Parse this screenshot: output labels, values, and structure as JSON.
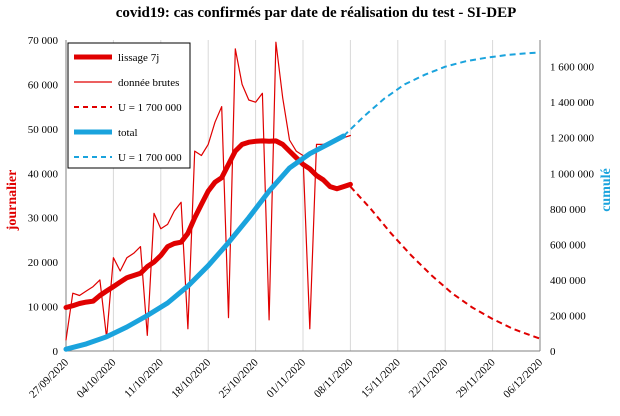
{
  "chart_data": {
    "type": "line",
    "title": "covid19: cas confirmés par date de réalisation du test - SI-DEP",
    "ylabel_left": "journalier",
    "ylabel_right": "cumulé",
    "x_tick_labels": [
      "27/09/2020",
      "04/10/2020",
      "11/10/2020",
      "18/10/2020",
      "25/10/2020",
      "01/11/2020",
      "08/11/2020",
      "15/11/2020",
      "22/11/2020",
      "29/11/2020",
      "06/12/2020"
    ],
    "x_day_range": [
      0,
      70
    ],
    "y_left_ticks": [
      "0",
      "10 000",
      "20 000",
      "30 000",
      "40 000",
      "50 000",
      "60 000",
      "70 000"
    ],
    "y_left_range": [
      0,
      70000
    ],
    "y_right_ticks": [
      "0",
      "200 000",
      "400 000",
      "600 000",
      "800 000",
      "1 000 000",
      "1 200 000",
      "1 400 000",
      "1 600 000"
    ],
    "y_right_range": [
      0,
      1750000
    ],
    "grid": "vertical",
    "legend_position": "top-left",
    "colors": {
      "red": "#e00000",
      "blue": "#1aa3dd"
    },
    "series": [
      {
        "name": "lissage 7j",
        "axis": "left",
        "color": "#e00000",
        "style": "solid",
        "width": 5,
        "x": [
          0,
          1,
          2,
          3,
          4,
          5,
          6,
          7,
          8,
          9,
          10,
          11,
          12,
          13,
          14,
          15,
          16,
          17,
          18,
          19,
          20,
          21,
          22,
          23,
          24,
          25,
          26,
          27,
          28,
          29,
          30,
          31,
          32,
          33,
          34,
          35,
          36,
          37,
          38,
          39,
          40,
          41,
          42
        ],
        "y": [
          9800,
          10200,
          10700,
          11000,
          11200,
          12500,
          13500,
          14500,
          15500,
          16500,
          17000,
          17500,
          19000,
          20000,
          21500,
          23500,
          24200,
          24500,
          26500,
          30000,
          33000,
          36000,
          38000,
          39000,
          42000,
          45000,
          46500,
          47000,
          47200,
          47300,
          47200,
          47300,
          46500,
          45000,
          43500,
          42000,
          41000,
          39500,
          38500,
          37000,
          36500,
          37000,
          37500
        ]
      },
      {
        "name": "donnée brutes",
        "axis": "left",
        "color": "#e00000",
        "style": "solid",
        "width": 1.2,
        "x": [
          0,
          1,
          2,
          3,
          4,
          5,
          6,
          7,
          8,
          9,
          10,
          11,
          12,
          13,
          14,
          15,
          16,
          17,
          18,
          19,
          20,
          21,
          22,
          23,
          24,
          25,
          26,
          27,
          28,
          29,
          30,
          31,
          32,
          33,
          34,
          35,
          36,
          37,
          38,
          39,
          40,
          41,
          42
        ],
        "y": [
          2500,
          13000,
          12500,
          13500,
          14500,
          16000,
          3000,
          21000,
          18000,
          21000,
          22000,
          23500,
          3500,
          31000,
          27500,
          28500,
          31500,
          33500,
          5000,
          45000,
          44000,
          46500,
          51500,
          55000,
          7500,
          68000,
          60000,
          56500,
          56000,
          58000,
          7000,
          69500,
          57000,
          47500,
          45000,
          44000,
          5000,
          46500,
          46500,
          47000,
          47500,
          48000,
          48500
        ]
      },
      {
        "name": "U = 1 700 000",
        "axis": "left",
        "color": "#e00000",
        "style": "dashed",
        "width": 2,
        "x": [
          42,
          45,
          48,
          51,
          54,
          57,
          60,
          63,
          66,
          69,
          70
        ],
        "y": [
          37000,
          32000,
          26500,
          21500,
          17000,
          13000,
          9800,
          7200,
          5000,
          3300,
          2800
        ]
      },
      {
        "name": "total",
        "axis": "right",
        "color": "#1aa3dd",
        "style": "solid",
        "width": 5,
        "x": [
          0,
          3,
          6,
          9,
          12,
          15,
          18,
          21,
          24,
          27,
          30,
          33,
          36,
          39,
          41
        ],
        "y": [
          10000,
          40000,
          80000,
          135000,
          200000,
          270000,
          365000,
          480000,
          610000,
          750000,
          900000,
          1030000,
          1110000,
          1170000,
          1210000
        ]
      },
      {
        "name": "U = 1 700 000",
        "axis": "right",
        "color": "#1aa3dd",
        "style": "dashed",
        "width": 2,
        "x": [
          41,
          44,
          47,
          50,
          53,
          56,
          59,
          62,
          65,
          68,
          70
        ],
        "y": [
          1210000,
          1320000,
          1420000,
          1500000,
          1555000,
          1600000,
          1630000,
          1650000,
          1665000,
          1675000,
          1680000
        ]
      }
    ],
    "legend": [
      {
        "label": "lissage 7j",
        "color": "#e00000",
        "style": "solid",
        "width": 5
      },
      {
        "label": "donnée brutes",
        "color": "#e00000",
        "style": "solid",
        "width": 1.2
      },
      {
        "label": "U = 1 700 000",
        "color": "#e00000",
        "style": "dashed",
        "width": 2
      },
      {
        "label": "total",
        "color": "#1aa3dd",
        "style": "solid",
        "width": 5
      },
      {
        "label": "U = 1 700 000",
        "color": "#1aa3dd",
        "style": "dashed",
        "width": 2
      }
    ]
  }
}
